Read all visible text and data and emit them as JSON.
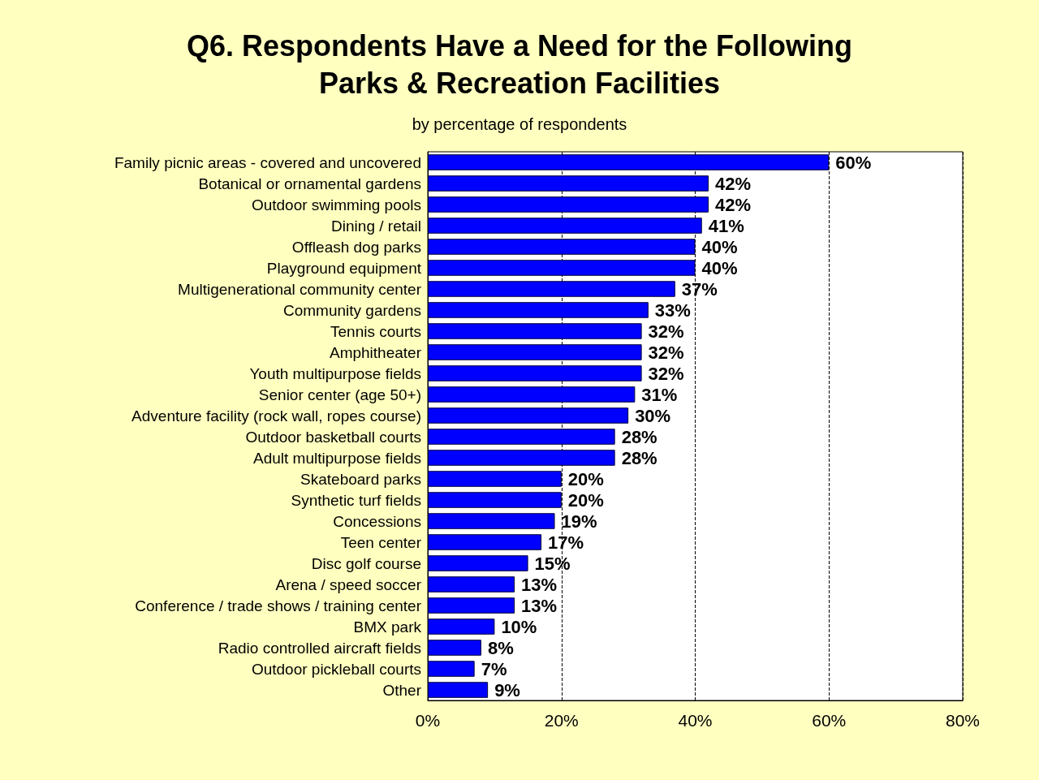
{
  "chart_data": {
    "type": "bar",
    "orientation": "horizontal",
    "title": "Q6. Respondents Have a Need for the Following\nParks & Recreation Facilities",
    "subtitle": "by percentage of respondents",
    "categories": [
      "Family picnic areas - covered and uncovered",
      "Botanical or ornamental gardens",
      "Outdoor swimming pools",
      "Dining / retail",
      "Offleash dog parks",
      "Playground equipment",
      "Multigenerational community center",
      "Community gardens",
      "Tennis courts",
      "Amphitheater",
      "Youth multipurpose fields",
      "Senior center (age 50+)",
      "Adventure facility (rock wall, ropes course)",
      "Outdoor basketball courts",
      "Adult multipurpose fields",
      "Skateboard parks",
      "Synthetic turf fields",
      "Concessions",
      "Teen center",
      "Disc golf course",
      "Arena / speed soccer",
      "Conference / trade shows / training center",
      "BMX park",
      "Radio controlled aircraft fields",
      "Outdoor pickleball courts",
      "Other"
    ],
    "values": [
      60,
      42,
      42,
      41,
      40,
      40,
      37,
      33,
      32,
      32,
      32,
      31,
      30,
      28,
      28,
      20,
      20,
      19,
      17,
      15,
      13,
      13,
      10,
      8,
      7,
      9
    ],
    "value_labels": [
      "60%",
      "42%",
      "42%",
      "41%",
      "40%",
      "40%",
      "37%",
      "33%",
      "32%",
      "32%",
      "32%",
      "31%",
      "30%",
      "28%",
      "28%",
      "20%",
      "20%",
      "19%",
      "17%",
      "15%",
      "13%",
      "13%",
      "10%",
      "8%",
      "7%",
      "9%"
    ],
    "color": "#0000ff",
    "xlim": [
      0,
      80
    ],
    "xticks": [
      {
        "value": 0,
        "label": "0%"
      },
      {
        "value": 20,
        "label": "20%"
      },
      {
        "value": 40,
        "label": "40%"
      },
      {
        "value": 60,
        "label": "60%"
      },
      {
        "value": 80,
        "label": "80%"
      }
    ],
    "grid": "x"
  }
}
